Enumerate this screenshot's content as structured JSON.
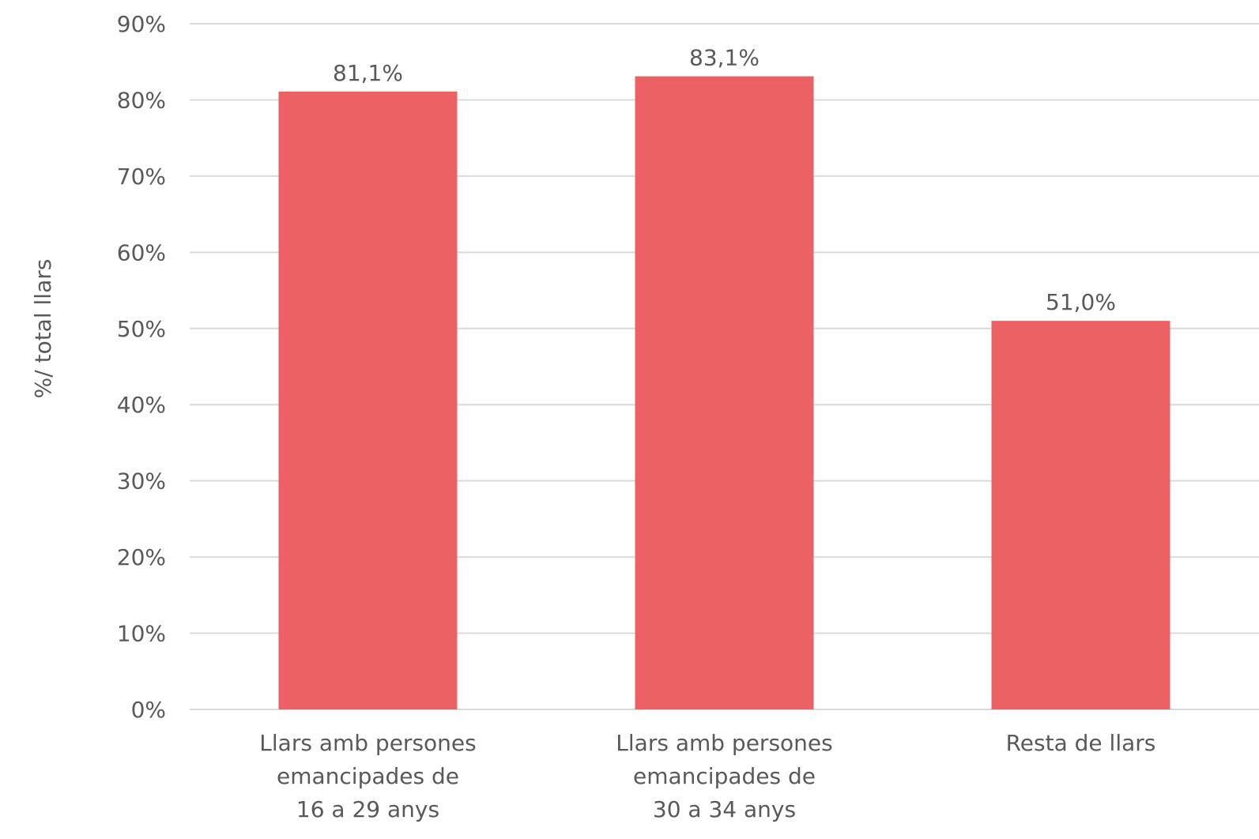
{
  "chart_data": {
    "type": "bar",
    "title": "",
    "xlabel": "",
    "ylabel": "%/ total llars",
    "ylim": [
      0,
      90
    ],
    "yticks": [
      0,
      10,
      20,
      30,
      40,
      50,
      60,
      70,
      80,
      90
    ],
    "ytick_labels": [
      "0%",
      "10%",
      "20%",
      "30%",
      "40%",
      "50%",
      "60%",
      "70%",
      "80%",
      "90%"
    ],
    "grid": true,
    "bar_color": "#EC6163",
    "categories": [
      [
        "Llars amb persones",
        "emancipades de",
        "16 a 29 anys"
      ],
      [
        "Llars amb persones",
        "emancipades de",
        "30 a 34 anys"
      ],
      [
        "Resta de llars"
      ]
    ],
    "values": [
      81.1,
      83.1,
      51.0
    ],
    "data_labels": [
      "81,1%",
      "83,1%",
      "51,0%"
    ]
  }
}
